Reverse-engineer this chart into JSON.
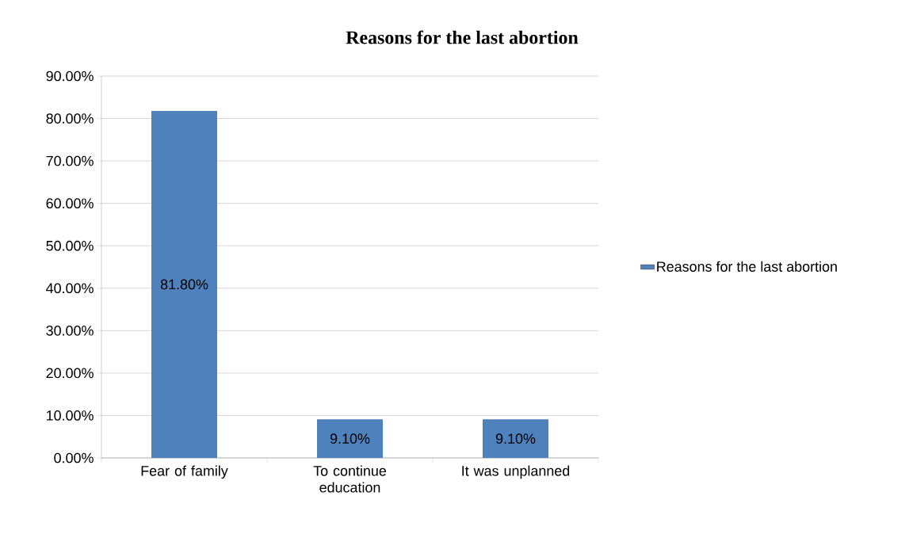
{
  "chart_data": {
    "type": "bar",
    "title": "Reasons for the last abortion",
    "categories": [
      "Fear of family",
      "To continue education",
      "It was unplanned"
    ],
    "series": [
      {
        "name": "Reasons for the last abortion",
        "color": "#4f81bd",
        "values": [
          81.8,
          9.1,
          9.1
        ],
        "value_labels": [
          "81.80%",
          "9.10%",
          "9.10%"
        ]
      }
    ],
    "ylim": [
      0,
      90
    ],
    "yticks": [
      {
        "value": 0,
        "label": "0.00%"
      },
      {
        "value": 10,
        "label": "10.00%"
      },
      {
        "value": 20,
        "label": "20.00%"
      },
      {
        "value": 30,
        "label": "30.00%"
      },
      {
        "value": 40,
        "label": "40.00%"
      },
      {
        "value": 50,
        "label": "50.00%"
      },
      {
        "value": 60,
        "label": "60.00%"
      },
      {
        "value": 70,
        "label": "70.00%"
      },
      {
        "value": 80,
        "label": "80.00%"
      },
      {
        "value": 90,
        "label": "90.00%"
      }
    ],
    "grid": "y",
    "legend": "right"
  }
}
